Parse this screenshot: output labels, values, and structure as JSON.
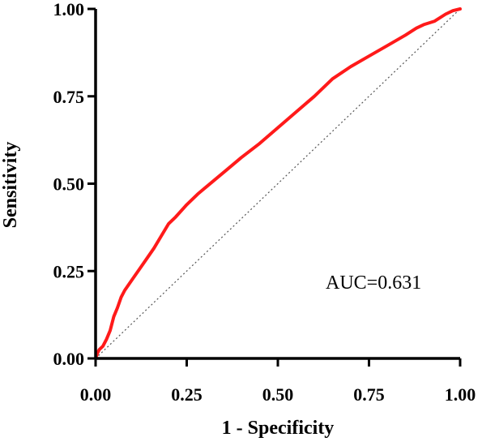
{
  "chart_data": {
    "type": "line",
    "title": "",
    "xlabel": "1 - Specificity",
    "ylabel": "Sensitivity",
    "xlim": [
      0,
      1
    ],
    "ylim": [
      0,
      1
    ],
    "x_ticks": [
      "0.00",
      "0.25",
      "0.50",
      "0.75",
      "1.00"
    ],
    "y_ticks": [
      "0.00",
      "0.25",
      "0.50",
      "0.75",
      "1.00"
    ],
    "grid": false,
    "annotation": "AUC=0.631",
    "reference_line": {
      "x": [
        0,
        1
      ],
      "y": [
        0,
        1
      ],
      "style": "dotted",
      "color": "#555555"
    },
    "series": [
      {
        "color": "#ff1a1a",
        "x": [
          0.0,
          0.005,
          0.01,
          0.02,
          0.03,
          0.04,
          0.05,
          0.06,
          0.07,
          0.08,
          0.09,
          0.1,
          0.12,
          0.14,
          0.16,
          0.18,
          0.2,
          0.22,
          0.25,
          0.28,
          0.32,
          0.36,
          0.4,
          0.45,
          0.5,
          0.55,
          0.6,
          0.65,
          0.7,
          0.75,
          0.8,
          0.85,
          0.88,
          0.9,
          0.93,
          0.96,
          0.98,
          1.0
        ],
        "y": [
          0.0,
          0.015,
          0.025,
          0.035,
          0.055,
          0.08,
          0.12,
          0.145,
          0.175,
          0.195,
          0.21,
          0.225,
          0.255,
          0.285,
          0.315,
          0.35,
          0.385,
          0.405,
          0.44,
          0.47,
          0.505,
          0.54,
          0.575,
          0.615,
          0.66,
          0.705,
          0.75,
          0.8,
          0.835,
          0.865,
          0.895,
          0.925,
          0.945,
          0.955,
          0.965,
          0.985,
          0.995,
          1.0
        ]
      }
    ]
  }
}
